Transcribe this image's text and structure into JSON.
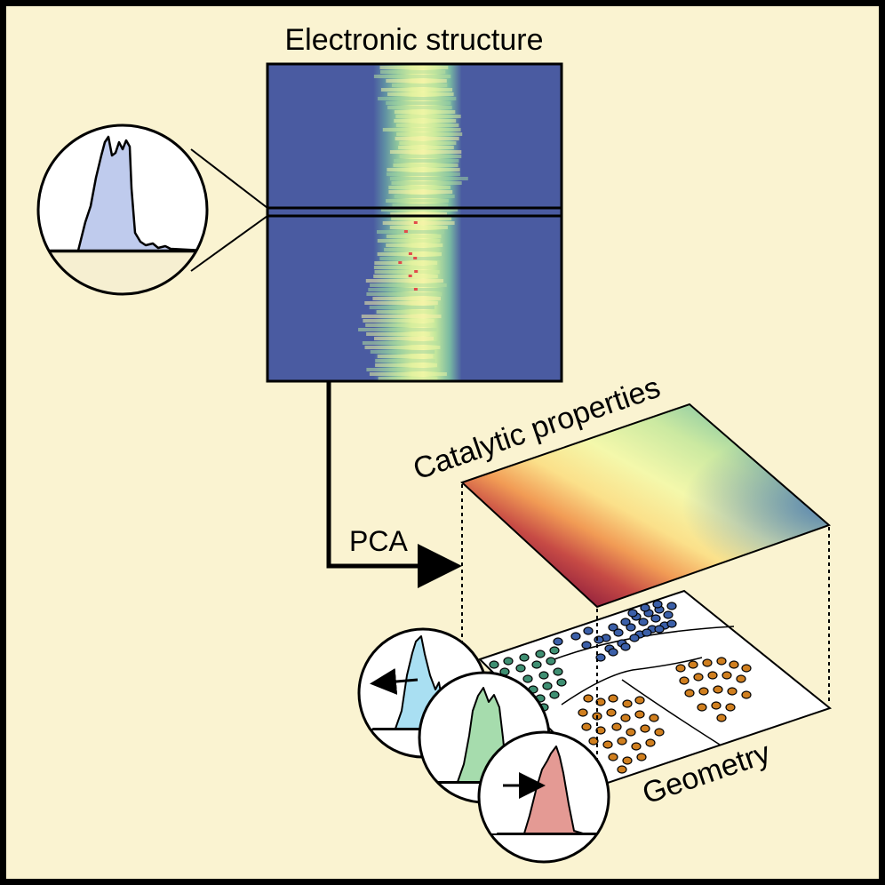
{
  "labels": {
    "electronic_structure": "Electronic structure",
    "catalytic_properties": "Catalytic properties",
    "pca": "PCA",
    "geometry": "Geometry"
  },
  "colors": {
    "background": "#faf3d1",
    "heatmap_bg": "#4a5ba1",
    "cluster_blue": "#3b5fa8",
    "cluster_green": "#3f8f72",
    "cluster_orange": "#d07f1f",
    "dos_blue": "#b9c8ea",
    "dos_cyan": "#a9dff2",
    "dos_green": "#a6dcad",
    "dos_red": "#e49a94"
  },
  "icons": [
    "dos-zoom-icon",
    "dos-cyan-icon",
    "dos-green-icon",
    "dos-red-icon",
    "arrow-left-icon",
    "arrow-right-icon",
    "pca-arrow-icon"
  ]
}
